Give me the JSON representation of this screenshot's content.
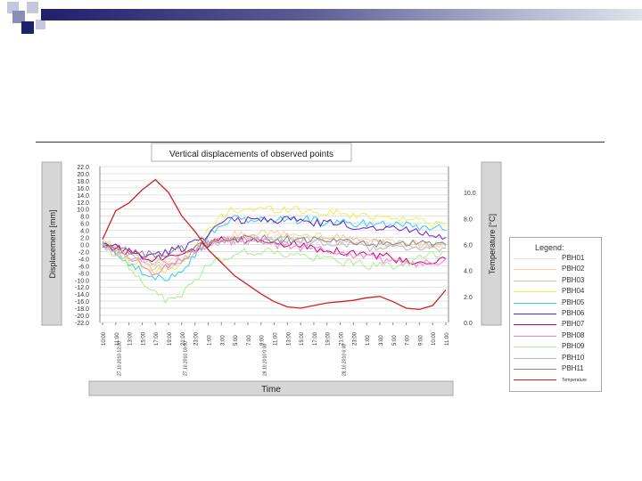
{
  "colors": {
    "deco_dark": "#20206b",
    "deco_mid": "#8a8fb5",
    "deco_light": "#c5c8dc",
    "panel_gray": "#d6d6d6"
  },
  "chart_data": {
    "type": "line",
    "title": "Vertical displacements of observed points",
    "xlabel": "Time",
    "ylabel": "Displacement [mm]",
    "y2label": "Temperature [°C]",
    "ylim": [
      -22,
      22
    ],
    "y2lim": [
      0,
      12
    ],
    "yticks": [
      "22.0",
      "20.0",
      "18.0",
      "16.0",
      "14.0",
      "12.0",
      "10.0",
      "8.0",
      "6.0",
      "4.0",
      "2.0",
      "0.0",
      "-2.0",
      "-4.0",
      "-6.0",
      "-8.0",
      "-10.0",
      "-12.0",
      "-14.0",
      "-16.0",
      "-18.0",
      "-20.0",
      "-22.0"
    ],
    "y2ticks": [
      "10.0",
      "8.0",
      "6.0",
      "4.0",
      "2.0",
      "0.0"
    ],
    "xticks": [
      "10:00",
      "11:00",
      "13:00",
      "15:00",
      "17:00",
      "19:00",
      "21:00",
      "23:00",
      "1:00",
      "3:00",
      "5:00",
      "7:00",
      "9:00",
      "11:00",
      "13:00",
      "15:00",
      "17:00",
      "19:00",
      "21:00",
      "23:00",
      "1:00",
      "3:00",
      "5:00",
      "7:00",
      "9:00",
      "10:00",
      "11:00"
    ],
    "date_labels": [
      "27.10.2010 12:00",
      "27.10.2010 18:00",
      "28.10.2010 0:00",
      "28.10.2010 6:00"
    ],
    "legend_title": "Legend:",
    "series": [
      {
        "name": "PBH01",
        "color": "#e6e6e6",
        "values": [
          0.5,
          -1,
          -2,
          -3,
          -3,
          -2,
          -1,
          0,
          1,
          1,
          1.5,
          1.5,
          2,
          2,
          2,
          1.5,
          1.5,
          1,
          1,
          0.5,
          0.5,
          0,
          0,
          0,
          0,
          0,
          0
        ]
      },
      {
        "name": "PBH02",
        "color": "#ffcc99",
        "values": [
          1,
          0,
          -2,
          -4,
          -6,
          -5,
          -3,
          -1,
          1,
          2,
          2.5,
          3,
          3,
          3,
          3,
          2.5,
          2.5,
          2,
          2,
          1.5,
          1.5,
          1,
          1,
          0.5,
          0.5,
          0,
          0
        ]
      },
      {
        "name": "PBH03",
        "color": "#d8c0a8",
        "values": [
          0,
          -2,
          -4,
          -5,
          -7,
          -6,
          -4,
          -2,
          0,
          1,
          1.5,
          2,
          2,
          2,
          2,
          1.5,
          1.5,
          1,
          1,
          1,
          0.5,
          0.5,
          0,
          0,
          0,
          -0.5,
          -0.5
        ]
      },
      {
        "name": "PBH04",
        "color": "#eeee55",
        "values": [
          1,
          -1,
          -4,
          -6,
          -8,
          -7,
          -5,
          -1,
          4,
          8,
          10,
          10,
          10,
          10,
          10,
          10,
          9,
          9,
          9,
          8,
          8,
          8,
          8,
          7,
          7,
          6,
          5
        ]
      },
      {
        "name": "PBH05",
        "color": "#33ccee",
        "values": [
          0,
          -2,
          -5,
          -8,
          -10,
          -9,
          -7,
          -3,
          2,
          6,
          7,
          7,
          7,
          7,
          7,
          7,
          7,
          6,
          6,
          6,
          6,
          6,
          6,
          6,
          5,
          5,
          4
        ]
      },
      {
        "name": "PBH06",
        "color": "#6622cc",
        "values": [
          0,
          -1,
          -2,
          -3,
          -3,
          -2,
          -1,
          1,
          3,
          6,
          7,
          7,
          7,
          7,
          7,
          7,
          6,
          6,
          6,
          5,
          5,
          5,
          5,
          4,
          4,
          3,
          2
        ]
      },
      {
        "name": "PBH07",
        "color": "#cc0066",
        "values": [
          0,
          -1,
          -2,
          -3,
          -4,
          -3,
          -2,
          -1,
          0,
          1,
          1,
          1,
          1,
          1,
          0,
          0,
          -1,
          -1,
          -2,
          -2,
          -3,
          -3,
          -4,
          -5,
          -6,
          -5,
          -4
        ]
      },
      {
        "name": "PBH08",
        "color": "#ff77dd",
        "values": [
          0,
          -2,
          -4,
          -6,
          -8,
          -6,
          -4,
          -2,
          0,
          1,
          1,
          1,
          1,
          0,
          0,
          -1,
          -1,
          -2,
          -2,
          -3,
          -3,
          -4,
          -5,
          -5,
          -6,
          -5,
          -4
        ]
      },
      {
        "name": "PBH09",
        "color": "#aaee88",
        "values": [
          0,
          -3,
          -6,
          -10,
          -14,
          -16,
          -14,
          -10,
          -6,
          -4,
          -3,
          -2,
          -2,
          -2,
          -3,
          -3,
          -4,
          -4,
          -5,
          -5,
          -6,
          -6,
          -6,
          -5,
          -4,
          -3,
          -2
        ]
      },
      {
        "name": "PBH10",
        "color": "#bbbbbb",
        "values": [
          0,
          -2,
          -3,
          -4,
          -5,
          -5,
          -4,
          -2,
          0,
          1,
          1,
          1,
          1,
          1,
          1,
          1,
          1,
          0,
          0,
          0,
          -1,
          -1,
          -1,
          -1,
          -1,
          -1,
          -1
        ]
      },
      {
        "name": "PBH11",
        "color": "#888888",
        "values": [
          -1,
          -1.5,
          -2,
          -2.5,
          -3,
          -2.5,
          -1.5,
          -0.5,
          0.5,
          1,
          1.5,
          1.5,
          1.5,
          1.5,
          1.5,
          1.5,
          1,
          1,
          1,
          0.5,
          0.5,
          0,
          0,
          0,
          0,
          0,
          0
        ]
      }
    ],
    "temperature": {
      "name": "Temperature",
      "color": "#d42020",
      "values": [
        6.4,
        8.6,
        9.2,
        10.2,
        11.0,
        10.0,
        8.2,
        7.0,
        5.6,
        4.6,
        3.6,
        2.9,
        2.2,
        1.6,
        1.2,
        1.1,
        1.3,
        1.5,
        1.6,
        1.7,
        1.9,
        2.0,
        1.6,
        1.1,
        1.0,
        1.3,
        2.5
      ]
    }
  }
}
